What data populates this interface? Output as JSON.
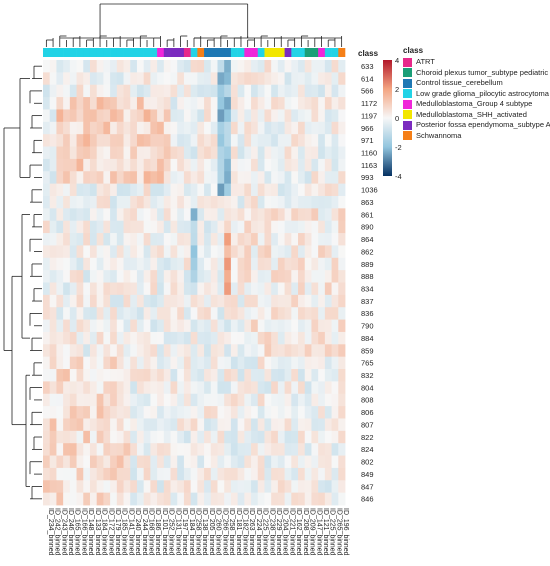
{
  "chart_data": {
    "type": "heatmap",
    "class_label": "class",
    "legend_title": "class",
    "color_scale": {
      "min": -4,
      "max": 4,
      "ticks": [
        4,
        2,
        0,
        -2,
        -4
      ],
      "low_color": "#053061",
      "mid_color": "#f7f7f7",
      "high_color": "#b2182b"
    },
    "classes": [
      {
        "name": "ATRT",
        "color": "#e7298a"
      },
      {
        "name": "Choroid plexus tumor_subtype pediatric B",
        "color": "#1b9e77"
      },
      {
        "name": "Control tissue_cerebellum",
        "color": "#1f78b4"
      },
      {
        "name": "Low grade glioma_pilocytic astrocytoma",
        "color": "#22d3e6"
      },
      {
        "name": "Medulloblastoma_Group 4 subtype",
        "color": "#f026d9"
      },
      {
        "name": "Medulloblastoma_SHH_activated",
        "color": "#f2e600"
      },
      {
        "name": "Posterior fossa ependymoma_subtype A",
        "color": "#7b2bbf"
      },
      {
        "name": "Schwannoma",
        "color": "#f57f17"
      }
    ],
    "rows": [
      "633",
      "614",
      "566",
      "1172",
      "1197",
      "966",
      "971",
      "1160",
      "1163",
      "993",
      "1036",
      "863",
      "861",
      "890",
      "864",
      "862",
      "889",
      "888",
      "834",
      "837",
      "836",
      "790",
      "884",
      "859",
      "765",
      "832",
      "804",
      "808",
      "806",
      "807",
      "822",
      "824",
      "802",
      "849",
      "847",
      "846"
    ],
    "columns": [
      {
        "label": "ID_234_binned",
        "class": 3
      },
      {
        "label": "ID_242_binned",
        "class": 3
      },
      {
        "label": "ID_243_binned",
        "class": 3
      },
      {
        "label": "ID_246_binned",
        "class": 3
      },
      {
        "label": "ID_165_binned",
        "class": 3
      },
      {
        "label": "ID_166_binned",
        "class": 3
      },
      {
        "label": "ID_148_binned",
        "class": 3
      },
      {
        "label": "ID_133_binned",
        "class": 3
      },
      {
        "label": "ID_184_binned",
        "class": 3
      },
      {
        "label": "ID_172_binned",
        "class": 3
      },
      {
        "label": "ID_179_binned",
        "class": 3
      },
      {
        "label": "ID_185_binned",
        "class": 3
      },
      {
        "label": "ID_141_binned",
        "class": 3
      },
      {
        "label": "ID_240_binned",
        "class": 3
      },
      {
        "label": "ID_244_binned",
        "class": 3
      },
      {
        "label": "ID_168_binned",
        "class": 3
      },
      {
        "label": "ID_186_binned",
        "class": 3
      },
      {
        "label": "ID_101_binned",
        "class": 4
      },
      {
        "label": "ID_252_binned",
        "class": 6
      },
      {
        "label": "ID_131_binned",
        "class": 6
      },
      {
        "label": "ID_197_binned",
        "class": 6
      },
      {
        "label": "ID_184_binned",
        "class": 0
      },
      {
        "label": "ID_258_binned",
        "class": 3
      },
      {
        "label": "ID_138_binned",
        "class": 7
      },
      {
        "label": "ID_205_binned",
        "class": 2
      },
      {
        "label": "ID_260_binned",
        "class": 2
      },
      {
        "label": "ID_266_binned",
        "class": 2
      },
      {
        "label": "ID_258_binned",
        "class": 2
      },
      {
        "label": "ID_181_binned",
        "class": 3
      },
      {
        "label": "ID_182_binned",
        "class": 3
      },
      {
        "label": "ID_263_binned",
        "class": 4
      },
      {
        "label": "ID_224_binned",
        "class": 4
      },
      {
        "label": "ID_225_binned",
        "class": 3
      },
      {
        "label": "ID_238_binned",
        "class": 5
      },
      {
        "label": "ID_229_binned",
        "class": 5
      },
      {
        "label": "ID_204_binned",
        "class": 5
      },
      {
        "label": "ID_221_binned",
        "class": 6
      },
      {
        "label": "ID_162_binned",
        "class": 3
      },
      {
        "label": "ID_208_binned",
        "class": 3
      },
      {
        "label": "ID_209_binned",
        "class": 1
      },
      {
        "label": "ID_147_binned",
        "class": 1
      },
      {
        "label": "ID_121_binned",
        "class": 4
      },
      {
        "label": "ID_225_binned",
        "class": 3
      },
      {
        "label": "ID_265_binned",
        "class": 3
      },
      {
        "label": "ID_196_binned",
        "class": 7
      }
    ]
  }
}
